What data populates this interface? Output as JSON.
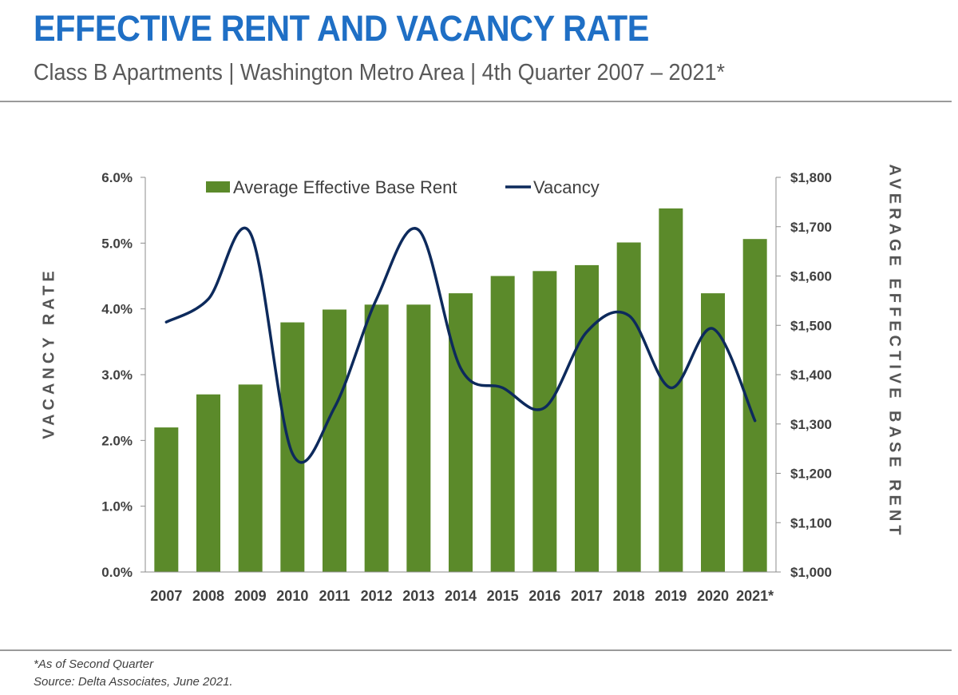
{
  "header": {
    "title": "EFFECTIVE RENT AND VACANCY RATE",
    "subtitle": "Class B Apartments | Washington Metro Area | 4th Quarter 2007 – 2021*"
  },
  "footer": {
    "note": "*As of Second Quarter",
    "source": "Source: Delta Associates, June 2021."
  },
  "colors": {
    "title": "#1f6fc5",
    "bar": "#5b8a2a",
    "line": "#0d2a5c",
    "axis_text": "#404040",
    "rule": "#9a9a9a"
  },
  "chart_data": {
    "type": "bar",
    "categories": [
      "2007",
      "2008",
      "2009",
      "2010",
      "2011",
      "2012",
      "2013",
      "2014",
      "2015",
      "2016",
      "2017",
      "2018",
      "2019",
      "2020",
      "2021*"
    ],
    "series": [
      {
        "name": "Average Effective Base Rent",
        "type": "bar",
        "axis": "right",
        "values": [
          1293,
          1360,
          1380,
          1506,
          1532,
          1542,
          1542,
          1565,
          1600,
          1610,
          1622,
          1668,
          1737,
          1565,
          1675
        ]
      },
      {
        "name": "Vacancy",
        "type": "line",
        "axis": "left",
        "values": [
          3.8,
          4.15,
          5.15,
          1.8,
          2.5,
          4.15,
          5.2,
          3.1,
          2.8,
          2.5,
          3.65,
          3.9,
          2.8,
          3.7,
          2.3
        ]
      }
    ],
    "xlabel": "",
    "ylabel_left": "VACANCY RATE",
    "ylabel_right": "AVERAGE EFFECTIVE BASE RENT",
    "ylim_left": [
      0,
      6
    ],
    "ylim_right": [
      1000,
      1800
    ],
    "left_ticks": [
      "0.0%",
      "1.0%",
      "2.0%",
      "3.0%",
      "4.0%",
      "5.0%",
      "6.0%"
    ],
    "right_ticks": [
      "$1,000",
      "$1,100",
      "$1,200",
      "$1,300",
      "$1,400",
      "$1,500",
      "$1,600",
      "$1,700",
      "$1,800"
    ],
    "legend": {
      "position": "top",
      "entries": [
        "Average Effective Base Rent",
        "Vacancy"
      ]
    },
    "grid": false
  }
}
